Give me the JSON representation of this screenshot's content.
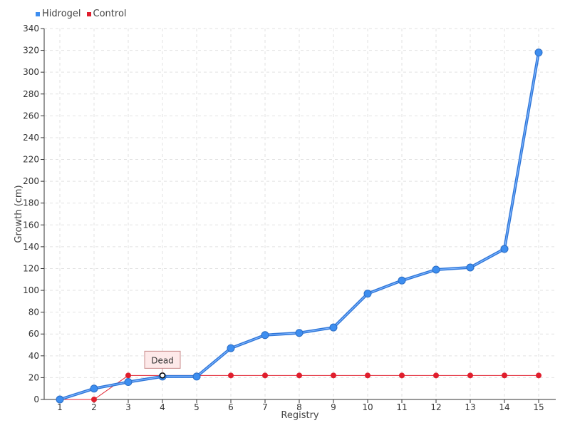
{
  "chart_data": {
    "type": "line",
    "xlabel": "Registry",
    "ylabel": "Growth (cm)",
    "categories": [
      "1",
      "2",
      "3",
      "4",
      "5",
      "6",
      "7",
      "8",
      "9",
      "10",
      "11",
      "12",
      "13",
      "14",
      "15"
    ],
    "ylim": [
      0,
      340
    ],
    "ytick_step": 20,
    "grid": true,
    "legend_position": "top-left",
    "series": [
      {
        "name": "Hidrogel",
        "color": "#3d8ef0",
        "values": [
          0,
          10,
          16,
          21,
          21,
          47,
          59,
          61,
          66,
          97,
          109,
          119,
          121,
          138,
          318
        ]
      },
      {
        "name": "Control",
        "color": "#e01e2d",
        "values": [
          0,
          0,
          22,
          22,
          22,
          22,
          22,
          22,
          22,
          22,
          22,
          22,
          22,
          22,
          22
        ]
      }
    ],
    "annotations": [
      {
        "label": "Dead",
        "category": "4",
        "series": "Control"
      }
    ]
  }
}
